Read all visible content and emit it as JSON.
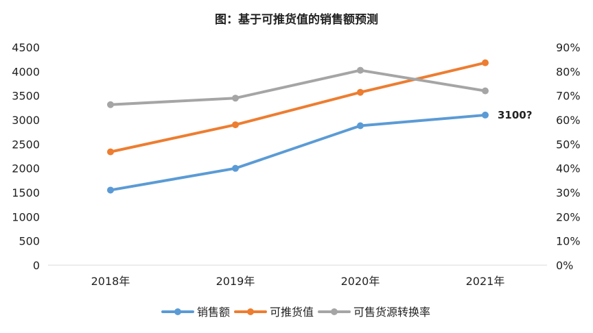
{
  "chart_data": {
    "type": "line",
    "title": "图：基于可推货值的销售额预测",
    "categories": [
      "2018年",
      "2019年",
      "2020年",
      "2021年"
    ],
    "y_left": {
      "ylim": [
        0,
        4500
      ],
      "ticks": [
        "0",
        "500",
        "1000",
        "1500",
        "2000",
        "2500",
        "3000",
        "3500",
        "4000",
        "4500"
      ]
    },
    "y_right": {
      "ylim": [
        0,
        0.9
      ],
      "ticks": [
        "0%",
        "10%",
        "20%",
        "30%",
        "40%",
        "50%",
        "60%",
        "70%",
        "80%",
        "90%"
      ]
    },
    "series": [
      {
        "name": "销售额",
        "axis": "left",
        "color": "#5B9BD5",
        "values": [
          1550,
          2000,
          2880,
          3100
        ]
      },
      {
        "name": "可推货值",
        "axis": "left",
        "color": "#ED7D31",
        "values": [
          2340,
          2900,
          3570,
          4180
        ]
      },
      {
        "name": "可售货源转换率",
        "axis": "right",
        "color": "#A5A5A5",
        "values": [
          0.663,
          0.69,
          0.805,
          0.72
        ]
      }
    ],
    "annotations": [
      {
        "text": "3100?",
        "series": 0,
        "index": 3
      }
    ],
    "grid": false,
    "legend": "bottom"
  }
}
